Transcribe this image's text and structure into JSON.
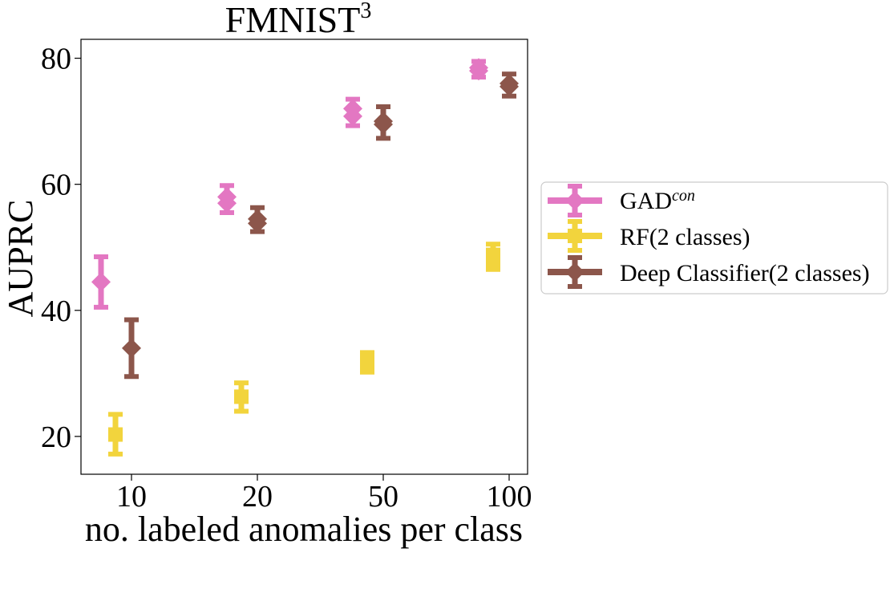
{
  "chart_data": {
    "type": "scatter",
    "title": "FMNIST",
    "title_superscript": "3",
    "xlabel": "no. labeled anomalies per class",
    "ylabel": "AUPRC",
    "categories": [
      "10",
      "20",
      "50",
      "100"
    ],
    "ylim": [
      14,
      83
    ],
    "yticks": [
      20,
      40,
      60,
      80
    ],
    "grid": false,
    "legend_position": "outside-right",
    "series": [
      {
        "name": "GAD",
        "name_superscript": "con",
        "color": "#e377c2",
        "marker": "diamond",
        "points": [
          {
            "values": [
              44.5
            ],
            "err_low": 40.5,
            "err_high": 48.5
          },
          {
            "values": [
              58.0,
              57.0
            ],
            "err_low": 55.5,
            "err_high": 59.8
          },
          {
            "values": [
              72.0,
              70.8
            ],
            "err_low": 69.3,
            "err_high": 73.5
          },
          {
            "values": [
              78.5,
              78.0
            ],
            "err_low": 77.0,
            "err_high": 79.5
          }
        ]
      },
      {
        "name": "RF(2 classes)",
        "color": "#f2d43d",
        "marker": "square",
        "points": [
          {
            "values": [
              20.3
            ],
            "err_low": 17.2,
            "err_high": 23.5
          },
          {
            "values": [
              26.3
            ],
            "err_low": 24.0,
            "err_high": 28.5
          },
          {
            "values": [
              32.0,
              31.3
            ],
            "err_low": 30.2,
            "err_high": 33.3
          },
          {
            "values": [
              48.8,
              47.8
            ],
            "err_low": 46.5,
            "err_high": 50.5
          }
        ]
      },
      {
        "name": "Deep Classifier(2 classes)",
        "color": "#8c564b",
        "marker": "diamond",
        "points": [
          {
            "values": [
              34.0
            ],
            "err_low": 29.5,
            "err_high": 38.5
          },
          {
            "values": [
              54.5,
              53.8
            ],
            "err_low": 52.5,
            "err_high": 56.3
          },
          {
            "values": [
              70.0,
              69.5
            ],
            "err_low": 67.3,
            "err_high": 72.3
          },
          {
            "values": [
              76.0,
              75.5
            ],
            "err_low": 74.0,
            "err_high": 77.5
          }
        ]
      }
    ]
  }
}
